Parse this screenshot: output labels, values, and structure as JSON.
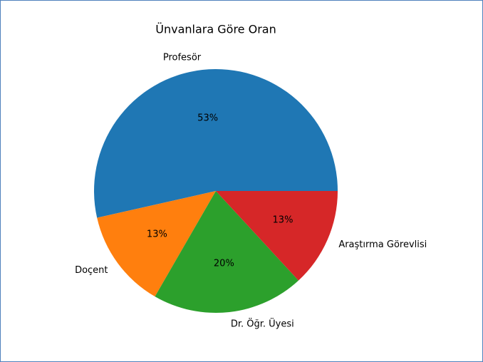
{
  "chart_data": {
    "type": "pie",
    "title": "Ünvanlara Göre Oran",
    "categories": [
      "Profesör",
      "Doçent",
      "Dr. Öğr. Üyesi",
      "Araştırma Görevlisi"
    ],
    "values": [
      53,
      13,
      20,
      13
    ],
    "value_labels": [
      "53%",
      "13%",
      "20%",
      "13%"
    ],
    "colors": [
      "#1f77b4",
      "#ff7f0e",
      "#2ca02c",
      "#d62728"
    ]
  }
}
